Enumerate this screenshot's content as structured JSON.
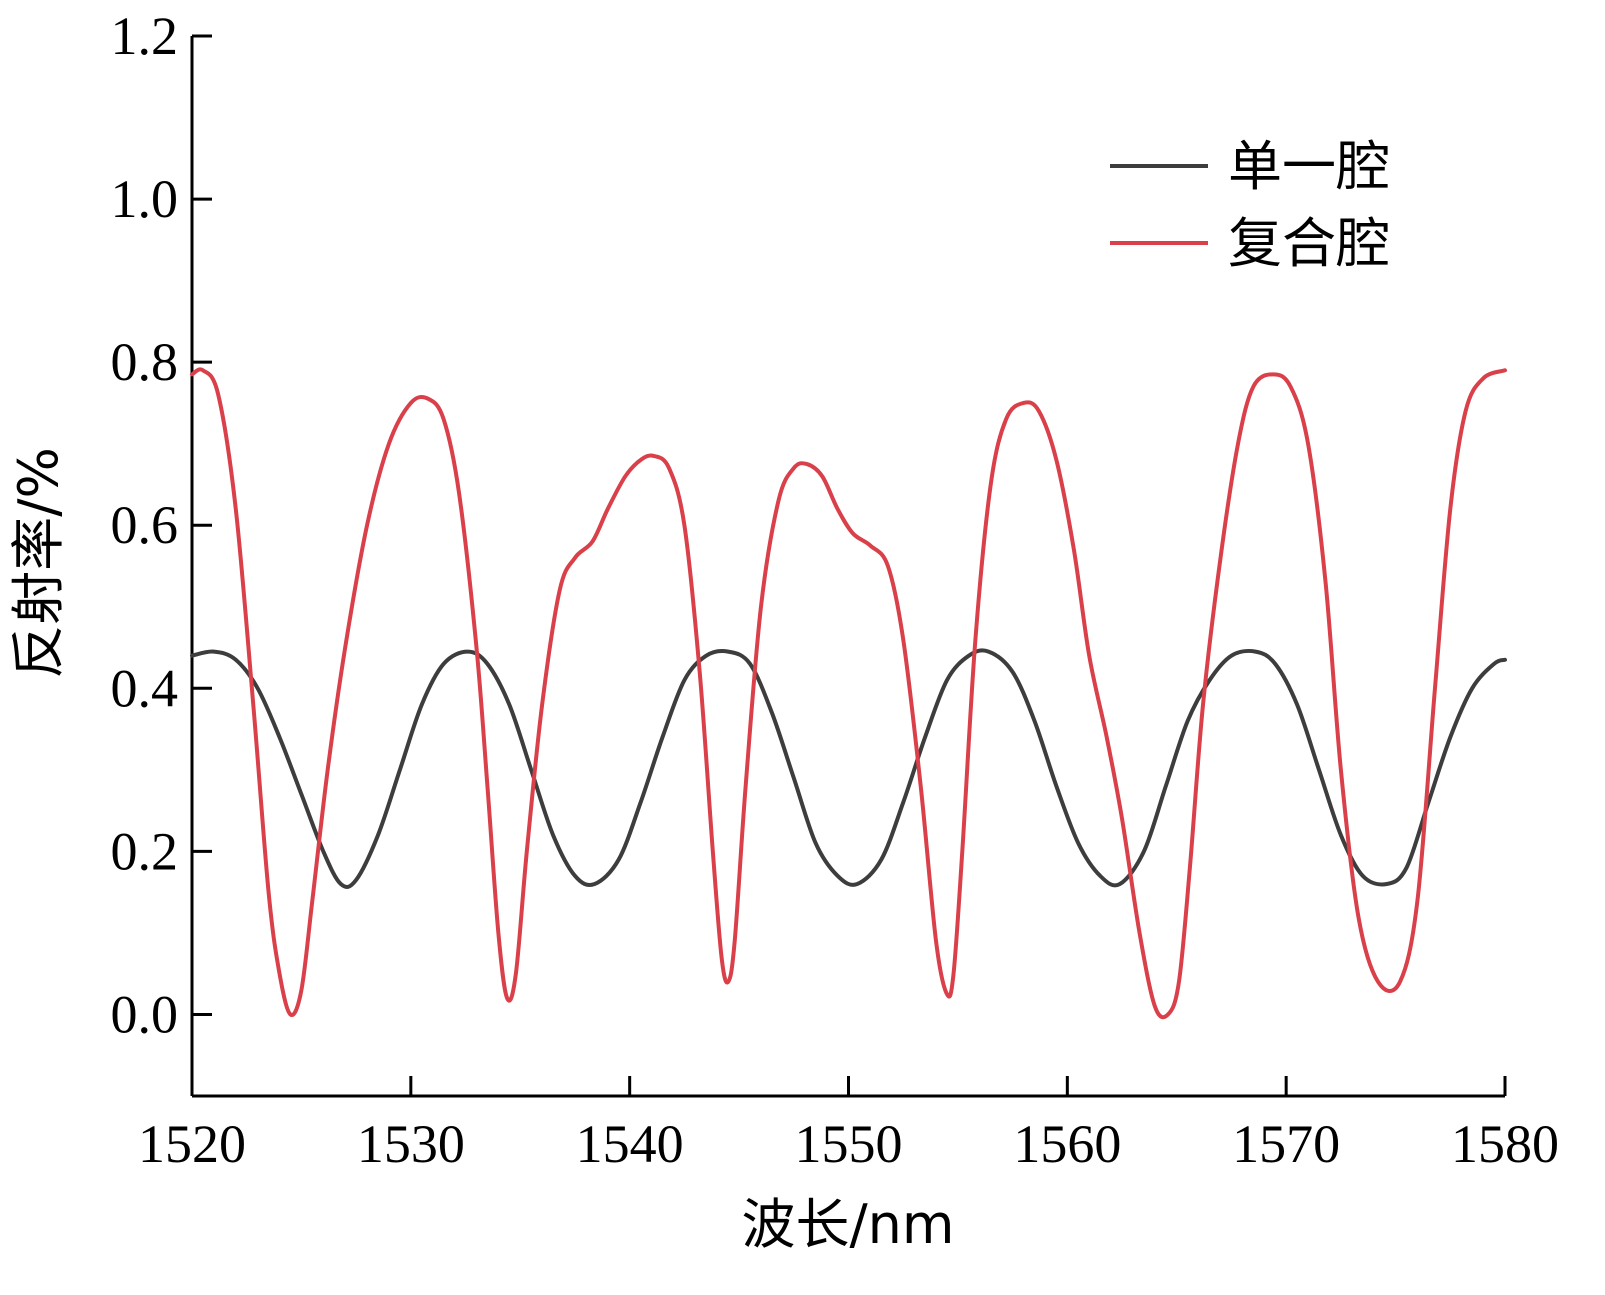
{
  "chart_data": {
    "type": "line",
    "title": "",
    "xlabel": "波长/nm",
    "ylabel": "反射率/%",
    "xlim": [
      1520,
      1580
    ],
    "ylim": [
      -0.1,
      1.2
    ],
    "xticks": [
      "1520",
      "1530",
      "1540",
      "1550",
      "1560",
      "1570",
      "1580"
    ],
    "yticks": [
      "0.0",
      "0.2",
      "0.4",
      "0.6",
      "0.8",
      "1.0",
      "1.2"
    ],
    "grid": false,
    "legend_position": "top-right",
    "series": [
      {
        "name": "单一腔",
        "color": "#3d3d3d",
        "x": [
          1520,
          1521,
          1522,
          1523,
          1524,
          1525,
          1526,
          1526.8,
          1527.5,
          1528.5,
          1529.5,
          1530.5,
          1531.5,
          1532.6,
          1533.5,
          1534.5,
          1535.5,
          1536.5,
          1537.5,
          1538.4,
          1539.5,
          1540.5,
          1541.5,
          1542.5,
          1543.5,
          1544.5,
          1545.5,
          1546.5,
          1547.5,
          1548.5,
          1549.5,
          1550.4,
          1551.5,
          1552.5,
          1553.5,
          1554.5,
          1555.5,
          1556.4,
          1557.5,
          1558.5,
          1559.5,
          1560.5,
          1561.5,
          1562.4,
          1563.5,
          1564.5,
          1565.5,
          1566.5,
          1567.5,
          1568.6,
          1569.5,
          1570.5,
          1571.5,
          1572.5,
          1573.5,
          1574.6,
          1575.5,
          1576.5,
          1577.5,
          1578.5,
          1579.5,
          1580
        ],
        "y": [
          0.44,
          0.445,
          0.435,
          0.4,
          0.34,
          0.27,
          0.2,
          0.16,
          0.165,
          0.22,
          0.3,
          0.38,
          0.43,
          0.445,
          0.43,
          0.38,
          0.3,
          0.22,
          0.17,
          0.16,
          0.19,
          0.26,
          0.34,
          0.41,
          0.44,
          0.445,
          0.43,
          0.37,
          0.29,
          0.21,
          0.17,
          0.16,
          0.19,
          0.26,
          0.34,
          0.41,
          0.44,
          0.445,
          0.42,
          0.36,
          0.28,
          0.21,
          0.17,
          0.16,
          0.2,
          0.28,
          0.36,
          0.41,
          0.44,
          0.445,
          0.43,
          0.38,
          0.3,
          0.22,
          0.17,
          0.16,
          0.18,
          0.26,
          0.34,
          0.4,
          0.43,
          0.435
        ]
      },
      {
        "name": "复合腔",
        "color": "#d9404a",
        "x": [
          1520,
          1520.5,
          1521.2,
          1522,
          1522.8,
          1523.5,
          1524,
          1524.5,
          1525,
          1525.5,
          1526.2,
          1527,
          1528,
          1529,
          1530,
          1530.8,
          1531.5,
          1532.2,
          1533,
          1533.5,
          1534,
          1534.4,
          1534.8,
          1535.3,
          1536,
          1536.8,
          1537.5,
          1538.3,
          1539,
          1539.8,
          1540.5,
          1541.1,
          1541.8,
          1542.5,
          1543.2,
          1543.8,
          1544.2,
          1544.5,
          1544.8,
          1545.3,
          1546,
          1546.8,
          1547.5,
          1548.1,
          1548.8,
          1549.5,
          1550.2,
          1551,
          1551.8,
          1552.5,
          1553.3,
          1554,
          1554.5,
          1554.8,
          1555.2,
          1555.8,
          1556.5,
          1557.2,
          1558,
          1558.7,
          1559.5,
          1560.3,
          1561,
          1561.8,
          1562.5,
          1563.3,
          1564,
          1564.6,
          1565.1,
          1565.6,
          1566.2,
          1567,
          1567.8,
          1568.5,
          1569.4,
          1570.2,
          1571,
          1571.8,
          1572.5,
          1573.3,
          1574.2,
          1575.2,
          1576,
          1576.8,
          1577.5,
          1578.2,
          1579,
          1580
        ],
        "y": [
          0.785,
          0.79,
          0.76,
          0.62,
          0.38,
          0.15,
          0.05,
          0.0,
          0.03,
          0.14,
          0.3,
          0.45,
          0.6,
          0.7,
          0.75,
          0.755,
          0.73,
          0.64,
          0.45,
          0.28,
          0.1,
          0.02,
          0.05,
          0.2,
          0.38,
          0.52,
          0.56,
          0.58,
          0.62,
          0.66,
          0.68,
          0.685,
          0.67,
          0.6,
          0.42,
          0.2,
          0.07,
          0.04,
          0.09,
          0.28,
          0.5,
          0.63,
          0.67,
          0.675,
          0.66,
          0.62,
          0.59,
          0.575,
          0.55,
          0.46,
          0.28,
          0.09,
          0.025,
          0.05,
          0.2,
          0.46,
          0.65,
          0.73,
          0.75,
          0.74,
          0.68,
          0.57,
          0.44,
          0.34,
          0.24,
          0.1,
          0.01,
          0.0,
          0.04,
          0.18,
          0.38,
          0.56,
          0.7,
          0.77,
          0.785,
          0.77,
          0.7,
          0.53,
          0.3,
          0.12,
          0.04,
          0.04,
          0.14,
          0.4,
          0.62,
          0.74,
          0.78,
          0.79
        ]
      }
    ]
  }
}
